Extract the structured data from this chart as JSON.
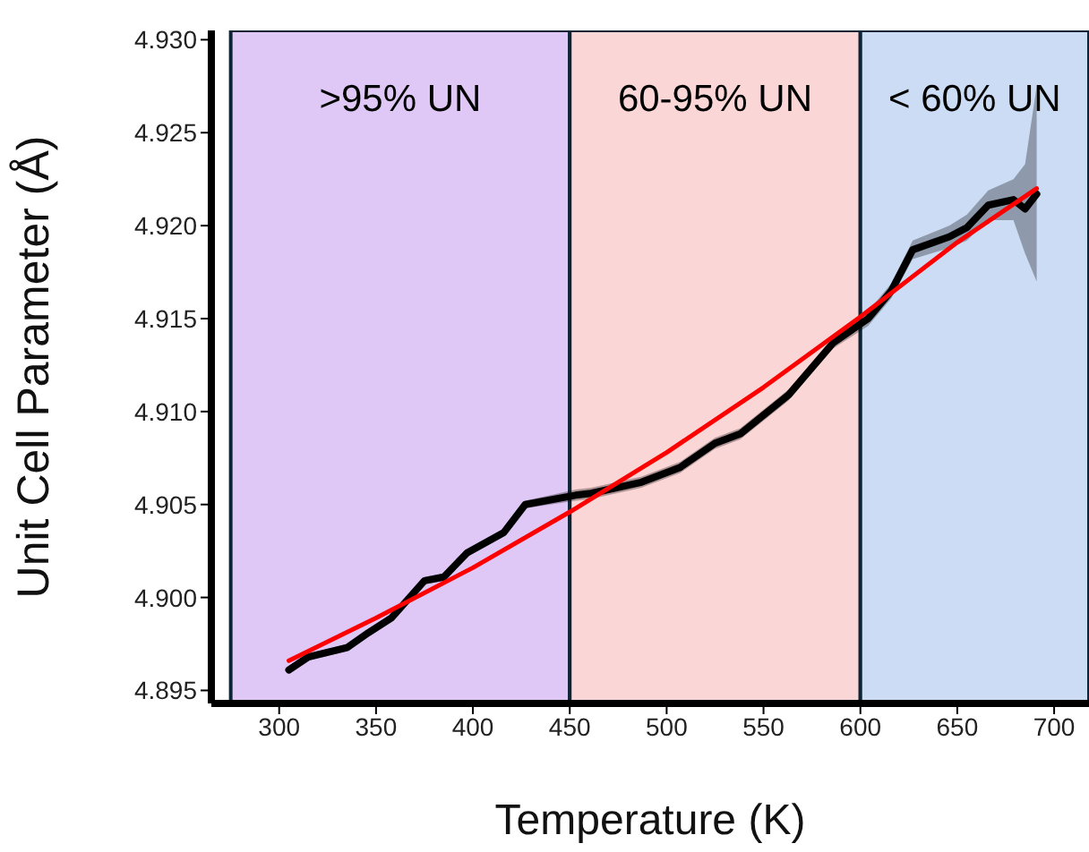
{
  "chart_data": {
    "type": "line",
    "xlabel": "Temperature (K)",
    "ylabel": "Unit Cell Parameter (Å)",
    "xlim": [
      265,
      718
    ],
    "xticks": [
      300,
      350,
      400,
      450,
      500,
      550,
      600,
      650,
      700
    ],
    "ylim": [
      4.8943,
      4.9305
    ],
    "yticks": [
      {
        "value": 4.895,
        "label": "4.895"
      },
      {
        "value": 4.9,
        "label": "4.900"
      },
      {
        "value": 4.905,
        "label": "4.905"
      },
      {
        "value": 4.91,
        "label": "4.910"
      },
      {
        "value": 4.915,
        "label": "4.915"
      },
      {
        "value": 4.92,
        "label": "4.920"
      },
      {
        "value": 4.925,
        "label": "4.925"
      },
      {
        "value": 4.93,
        "label": "4.930"
      }
    ],
    "grid": false,
    "legend": false,
    "marker": "none",
    "line_style": "solid",
    "bands": [
      {
        "axis": "x",
        "from": 275,
        "to": 450,
        "label": ">95% UN",
        "color": "#dfc8f5"
      },
      {
        "axis": "x",
        "from": 450,
        "to": 600,
        "label": "60-95% UN",
        "color": "#fbd6d6"
      },
      {
        "axis": "x",
        "from": 600,
        "to": 718,
        "label": "< 60% UN",
        "color": "#ccdcf5"
      }
    ],
    "series": [
      {
        "color": "#000000",
        "x": [
          305,
          315,
          335,
          346,
          358,
          375,
          385,
          397,
          416,
          427,
          453,
          461,
          487,
          507,
          525,
          538,
          563,
          586,
          604,
          616,
          627,
          646,
          655,
          666,
          679,
          685,
          691
        ],
        "values": [
          4.8961,
          4.8968,
          4.8973,
          4.8981,
          4.8989,
          4.9009,
          4.9011,
          4.9024,
          4.9035,
          4.905,
          4.9055,
          4.9056,
          4.9062,
          4.907,
          4.9083,
          4.9088,
          4.9109,
          4.9137,
          4.915,
          4.9165,
          4.9187,
          4.9194,
          4.9199,
          4.9211,
          4.9214,
          4.9209,
          4.9217
        ],
        "lower": [
          4.8959,
          4.8966,
          4.8971,
          4.8979,
          4.8987,
          4.9007,
          4.9009,
          4.9022,
          4.9033,
          4.9048,
          4.9052,
          4.9053,
          4.9059,
          4.9067,
          4.908,
          4.9085,
          4.9106,
          4.9134,
          4.9146,
          4.9161,
          4.9182,
          4.9188,
          4.9192,
          4.9203,
          4.9203,
          4.9185,
          4.917
        ],
        "upper": [
          4.8963,
          4.897,
          4.8975,
          4.8983,
          4.8991,
          4.9011,
          4.9013,
          4.9026,
          4.9037,
          4.9052,
          4.9058,
          4.9059,
          4.9065,
          4.9073,
          4.9086,
          4.9091,
          4.9112,
          4.914,
          4.9154,
          4.9169,
          4.9192,
          4.92,
          4.9206,
          4.9219,
          4.9225,
          4.9233,
          4.9275
        ]
      },
      {
        "color": "#ff0000",
        "x": [
          305,
          350,
          400,
          450,
          500,
          550,
          600,
          650,
          691
        ],
        "values": [
          4.8966,
          4.8989,
          4.9016,
          4.9046,
          4.9078,
          4.9113,
          4.9151,
          4.9191,
          4.922
        ]
      }
    ]
  }
}
